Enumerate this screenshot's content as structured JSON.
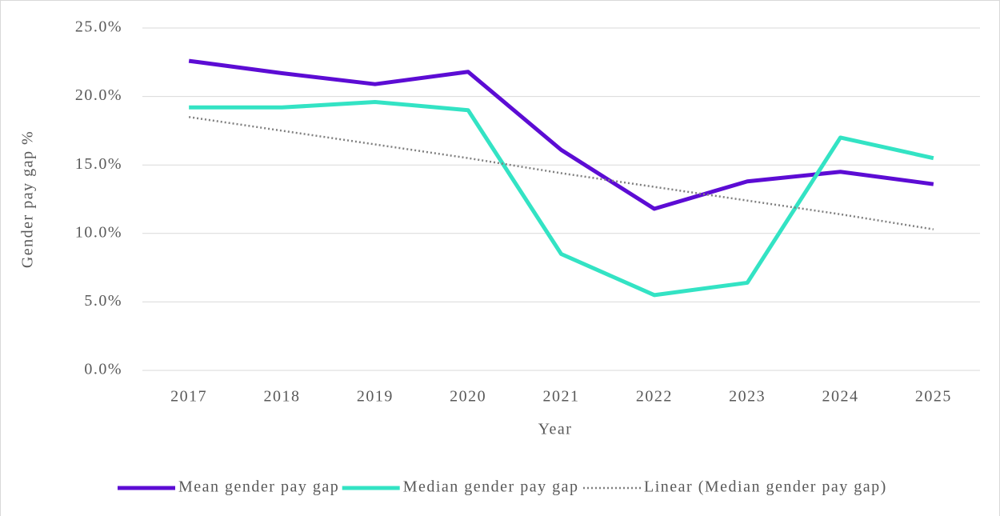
{
  "chart_data": {
    "type": "line",
    "x_label": "Year",
    "y_label": "Gender pay gap %",
    "categories": [
      "2017",
      "2018",
      "2019",
      "2020",
      "2021",
      "2022",
      "2023",
      "2024",
      "2025"
    ],
    "series": [
      {
        "name": "Mean gender pay gap",
        "color": "#5c0cd4",
        "style": "solid",
        "values": [
          22.6,
          21.7,
          20.9,
          21.8,
          16.1,
          11.8,
          13.8,
          14.5,
          13.6
        ]
      },
      {
        "name": "Median gender pay gap",
        "color": "#33e3c4",
        "style": "solid",
        "values": [
          19.2,
          19.2,
          19.6,
          19.0,
          8.5,
          5.5,
          6.4,
          17.0,
          15.5
        ]
      },
      {
        "name": "Linear (Median gender pay gap)",
        "color": "#808080",
        "style": "dotted",
        "values": [
          18.5,
          17.5,
          16.5,
          15.5,
          14.4,
          13.4,
          12.4,
          11.4,
          10.3
        ]
      }
    ],
    "ylim": [
      0,
      25
    ],
    "yticks": [
      {
        "value": 0,
        "label": "0.0%"
      },
      {
        "value": 5,
        "label": "5.0%"
      },
      {
        "value": 10,
        "label": "10.0%"
      },
      {
        "value": 15,
        "label": "15.0%"
      },
      {
        "value": 20,
        "label": "20.0%"
      },
      {
        "value": 25,
        "label": "25.0%"
      }
    ],
    "grid": true,
    "legend": "bottom"
  }
}
